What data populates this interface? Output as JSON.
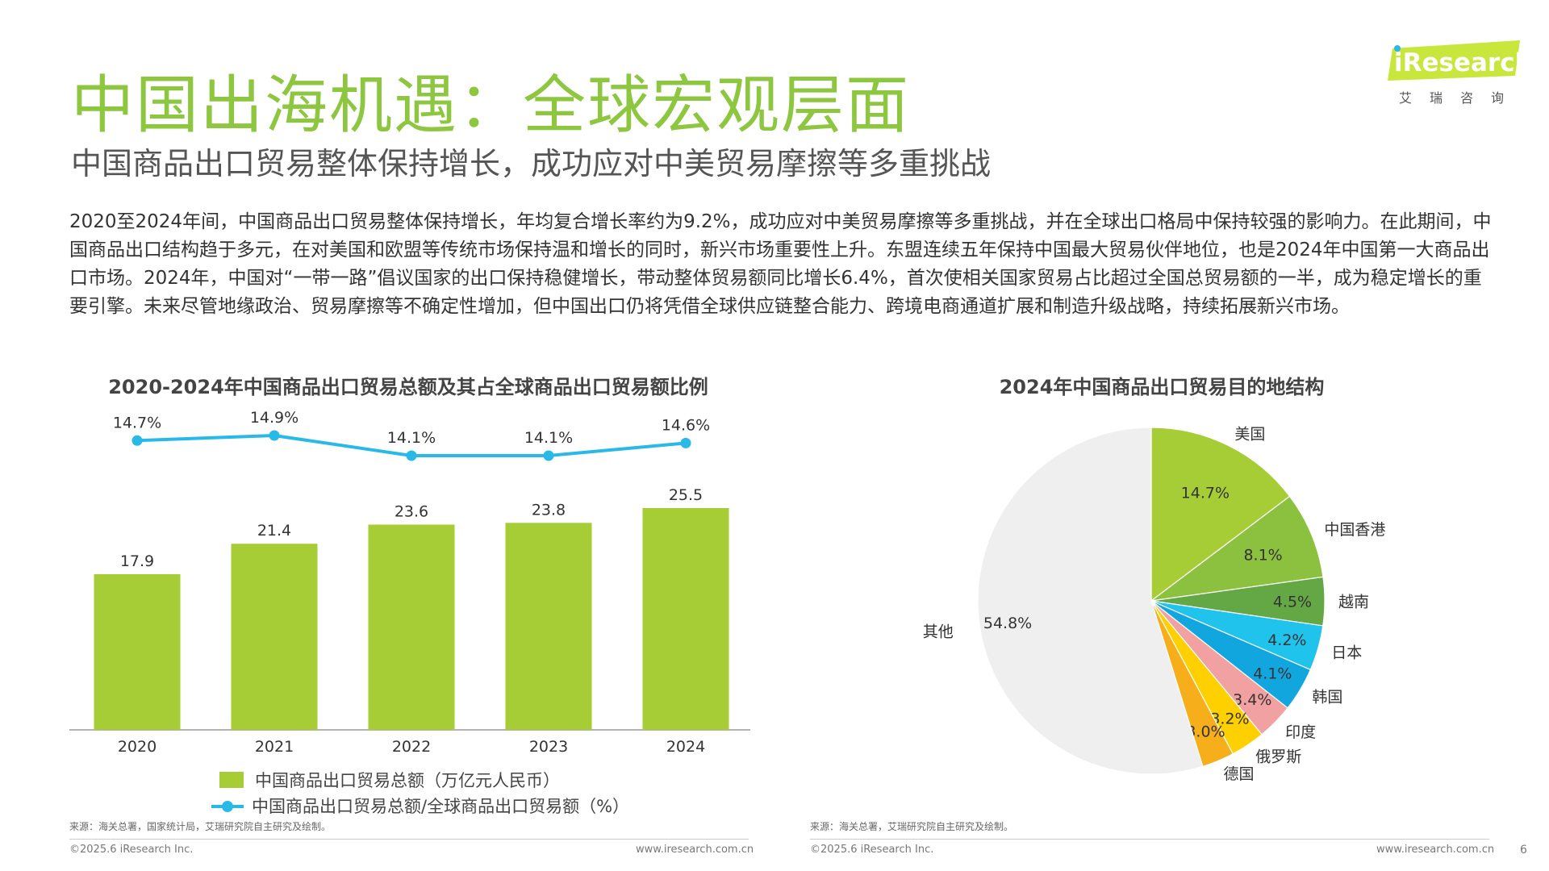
{
  "header": {
    "title": "中国出海机遇：全球宏观层面",
    "subtitle": "中国商品出口贸易整体保持增长，成功应对中美贸易摩擦等多重挑战",
    "logo_text": "iResearch",
    "logo_tagline": "艾瑞咨询"
  },
  "summary": "2020至2024年间，中国商品出口贸易整体保持增长，年均复合增长率约为9.2%，成功应对中美贸易摩擦等多重挑战，并在全球出口格局中保持较强的影响力。在此期间，中国商品出口结构趋于多元，在对美国和欧盟等传统市场保持温和增长的同时，新兴市场重要性上升。东盟连续五年保持中国最大贸易伙伴地位，也是2024年中国第一大商品出口市场。2024年，中国对“一带一路”倡议国家的出口保持稳健增长，带动整体贸易额同比增长6.4%，首次使相关国家贸易占比超过全国总贸易额的一半，成为稳定增长的重要引擎。未来尽管地缘政治、贸易摩擦等不确定性增加，但中国出口仍将凭借全球供应链整合能力、跨境电商通道扩展和制造升级战略，持续拓展新兴市场。",
  "chart_data": [
    {
      "type": "bar",
      "title": "2020-2024年中国商品出口贸易总额及其占全球商品出口贸易额比例",
      "categories": [
        "2020",
        "2021",
        "2022",
        "2023",
        "2024"
      ],
      "series": [
        {
          "name": "中国商品出口贸易总额（万亿元人民币）",
          "type": "bar",
          "values": [
            17.9,
            21.4,
            23.6,
            23.8,
            25.5
          ],
          "labels": [
            "17.9",
            "21.4",
            "23.6",
            "23.8",
            "25.5"
          ],
          "color": "#a6cd35"
        },
        {
          "name": "中国商品出口贸易总额/全球商品出口贸易额（%）",
          "type": "line",
          "values": [
            14.7,
            14.9,
            14.1,
            14.1,
            14.6
          ],
          "labels": [
            "14.7%",
            "14.9%",
            "14.1%",
            "14.1%",
            "14.6%"
          ],
          "color": "#29b9e8"
        }
      ],
      "ylim": [
        0,
        25.5
      ],
      "grid": false,
      "legend": "bottom"
    },
    {
      "type": "pie",
      "title": "2024年中国商品出口贸易目的地结构",
      "slices": [
        {
          "name": "美国",
          "value": 14.7,
          "label": "14.7%",
          "color": "#a6cd35"
        },
        {
          "name": "中国香港",
          "value": 8.1,
          "label": "8.1%",
          "color": "#8cc13f"
        },
        {
          "name": "越南",
          "value": 4.5,
          "label": "4.5%",
          "color": "#63a844"
        },
        {
          "name": "日本",
          "value": 4.2,
          "label": "4.2%",
          "color": "#1fc3ec"
        },
        {
          "name": "韩国",
          "value": 4.1,
          "label": "4.1%",
          "color": "#12a6df"
        },
        {
          "name": "印度",
          "value": 3.4,
          "label": "3.4%",
          "color": "#f2a1a3"
        },
        {
          "name": "俄罗斯",
          "value": 3.2,
          "label": "3.2%",
          "color": "#ffd000"
        },
        {
          "name": "德国",
          "value": 3.0,
          "label": "3.0%",
          "color": "#f6ae1b"
        },
        {
          "name": "其他",
          "value": 54.8,
          "label": "54.8%",
          "color": "#efefef"
        }
      ]
    }
  ],
  "sources": {
    "left": "来源：海关总署，国家统计局，艾瑞研究院自主研究及绘制。",
    "right": "来源：海关总署，艾瑞研究院自主研究及绘制。"
  },
  "footer": {
    "copyright": "©2025.6 iResearch Inc.",
    "website": "www.iresearch.com.cn",
    "page": "6"
  }
}
